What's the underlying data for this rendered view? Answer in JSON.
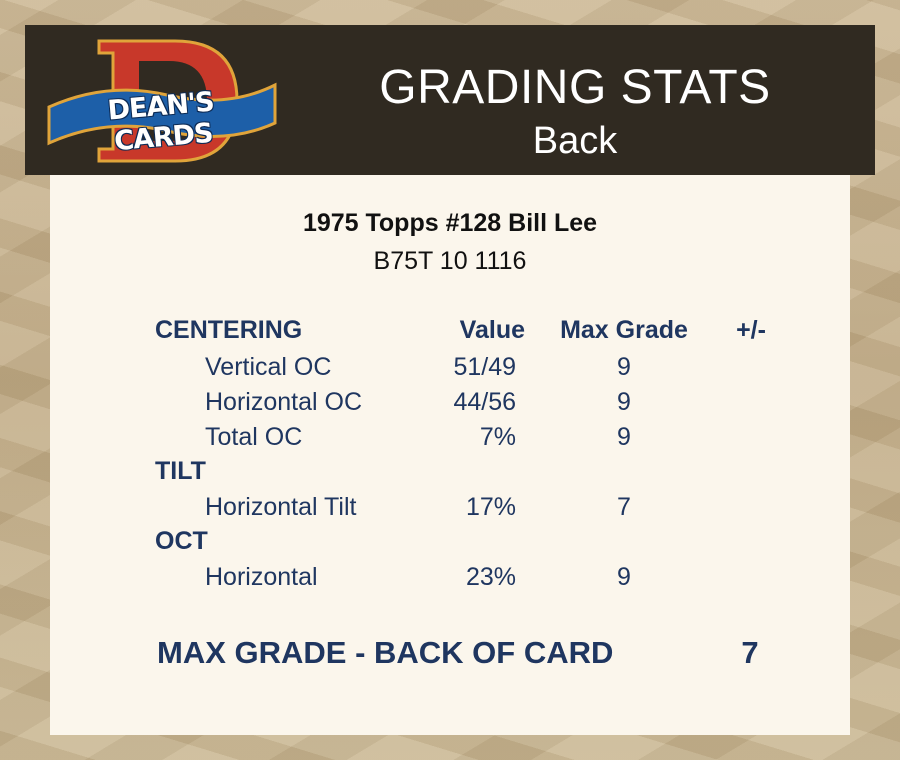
{
  "brand": {
    "logo_text": "DEAN'S CARDS"
  },
  "header": {
    "title": "GRADING STATS",
    "subtitle": "Back"
  },
  "card": {
    "title": "1975 Topps #128 Bill Lee",
    "code": "B75T 10 1116"
  },
  "table": {
    "columns": {
      "value": "Value",
      "max_grade": "Max Grade",
      "plus_minus": "+/-"
    },
    "sections": [
      {
        "label": "CENTERING",
        "rows": [
          {
            "label": "Vertical OC",
            "value": "51/49",
            "max_grade": "9"
          },
          {
            "label": "Horizontal OC",
            "value": "44/56",
            "max_grade": "9"
          },
          {
            "label": "Total OC",
            "value": "7%",
            "max_grade": "9"
          }
        ]
      },
      {
        "label": "TILT",
        "rows": [
          {
            "label": "Horizontal Tilt",
            "value": "17%",
            "max_grade": "7"
          }
        ]
      },
      {
        "label": "OCT",
        "rows": [
          {
            "label": "Horizontal",
            "value": "23%",
            "max_grade": "9"
          }
        ]
      }
    ]
  },
  "summary": {
    "label": "MAX GRADE - BACK OF CARD",
    "value": "7"
  },
  "colors": {
    "header_bg": "#302a21",
    "panel_bg": "#fbf6ec",
    "text_navy": "#1f3660",
    "logo_red": "#c8382a",
    "logo_blue": "#1d5fa8",
    "logo_gold": "#e0a43a"
  }
}
